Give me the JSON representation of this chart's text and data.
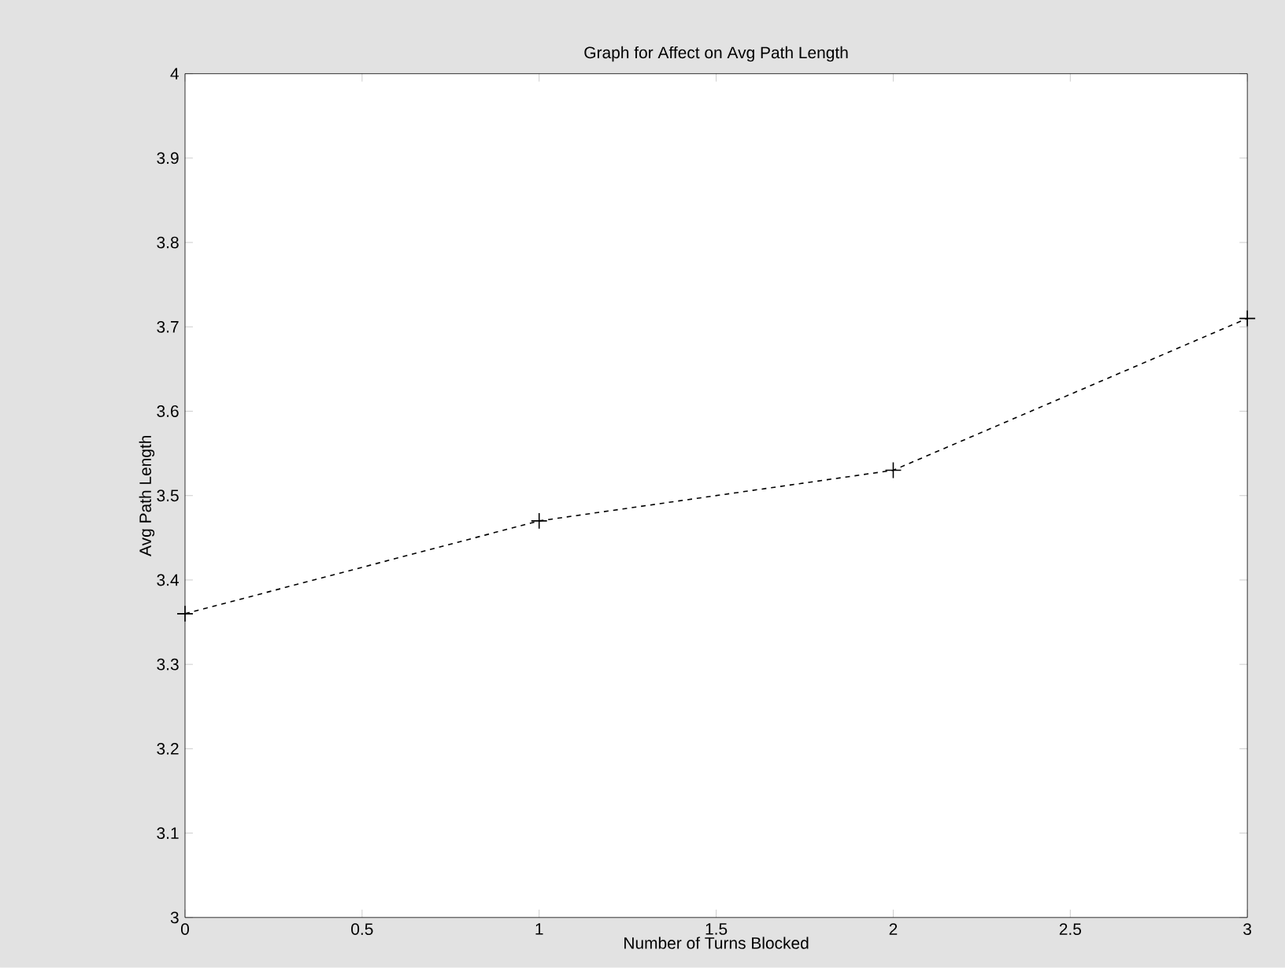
{
  "chart_data": {
    "type": "line",
    "title": "Graph for Affect on Avg Path Length",
    "xlabel": "Number of Turns Blocked",
    "ylabel": "Avg Path Length",
    "x": [
      0,
      1,
      2,
      3
    ],
    "series": [
      {
        "color": "#000000",
        "values": [
          3.36,
          3.47,
          3.53,
          3.71
        ]
      }
    ],
    "xlim": [
      0,
      3
    ],
    "xticks": [
      0,
      0.5,
      1,
      1.5,
      2,
      2.5,
      3
    ],
    "ylim": [
      3,
      4
    ],
    "yticks": [
      3,
      3.1,
      3.2,
      3.3,
      3.4,
      3.5,
      3.6,
      3.7,
      3.8,
      3.9,
      4
    ],
    "grid": false,
    "marker": "cross",
    "line_style": "dashed"
  }
}
